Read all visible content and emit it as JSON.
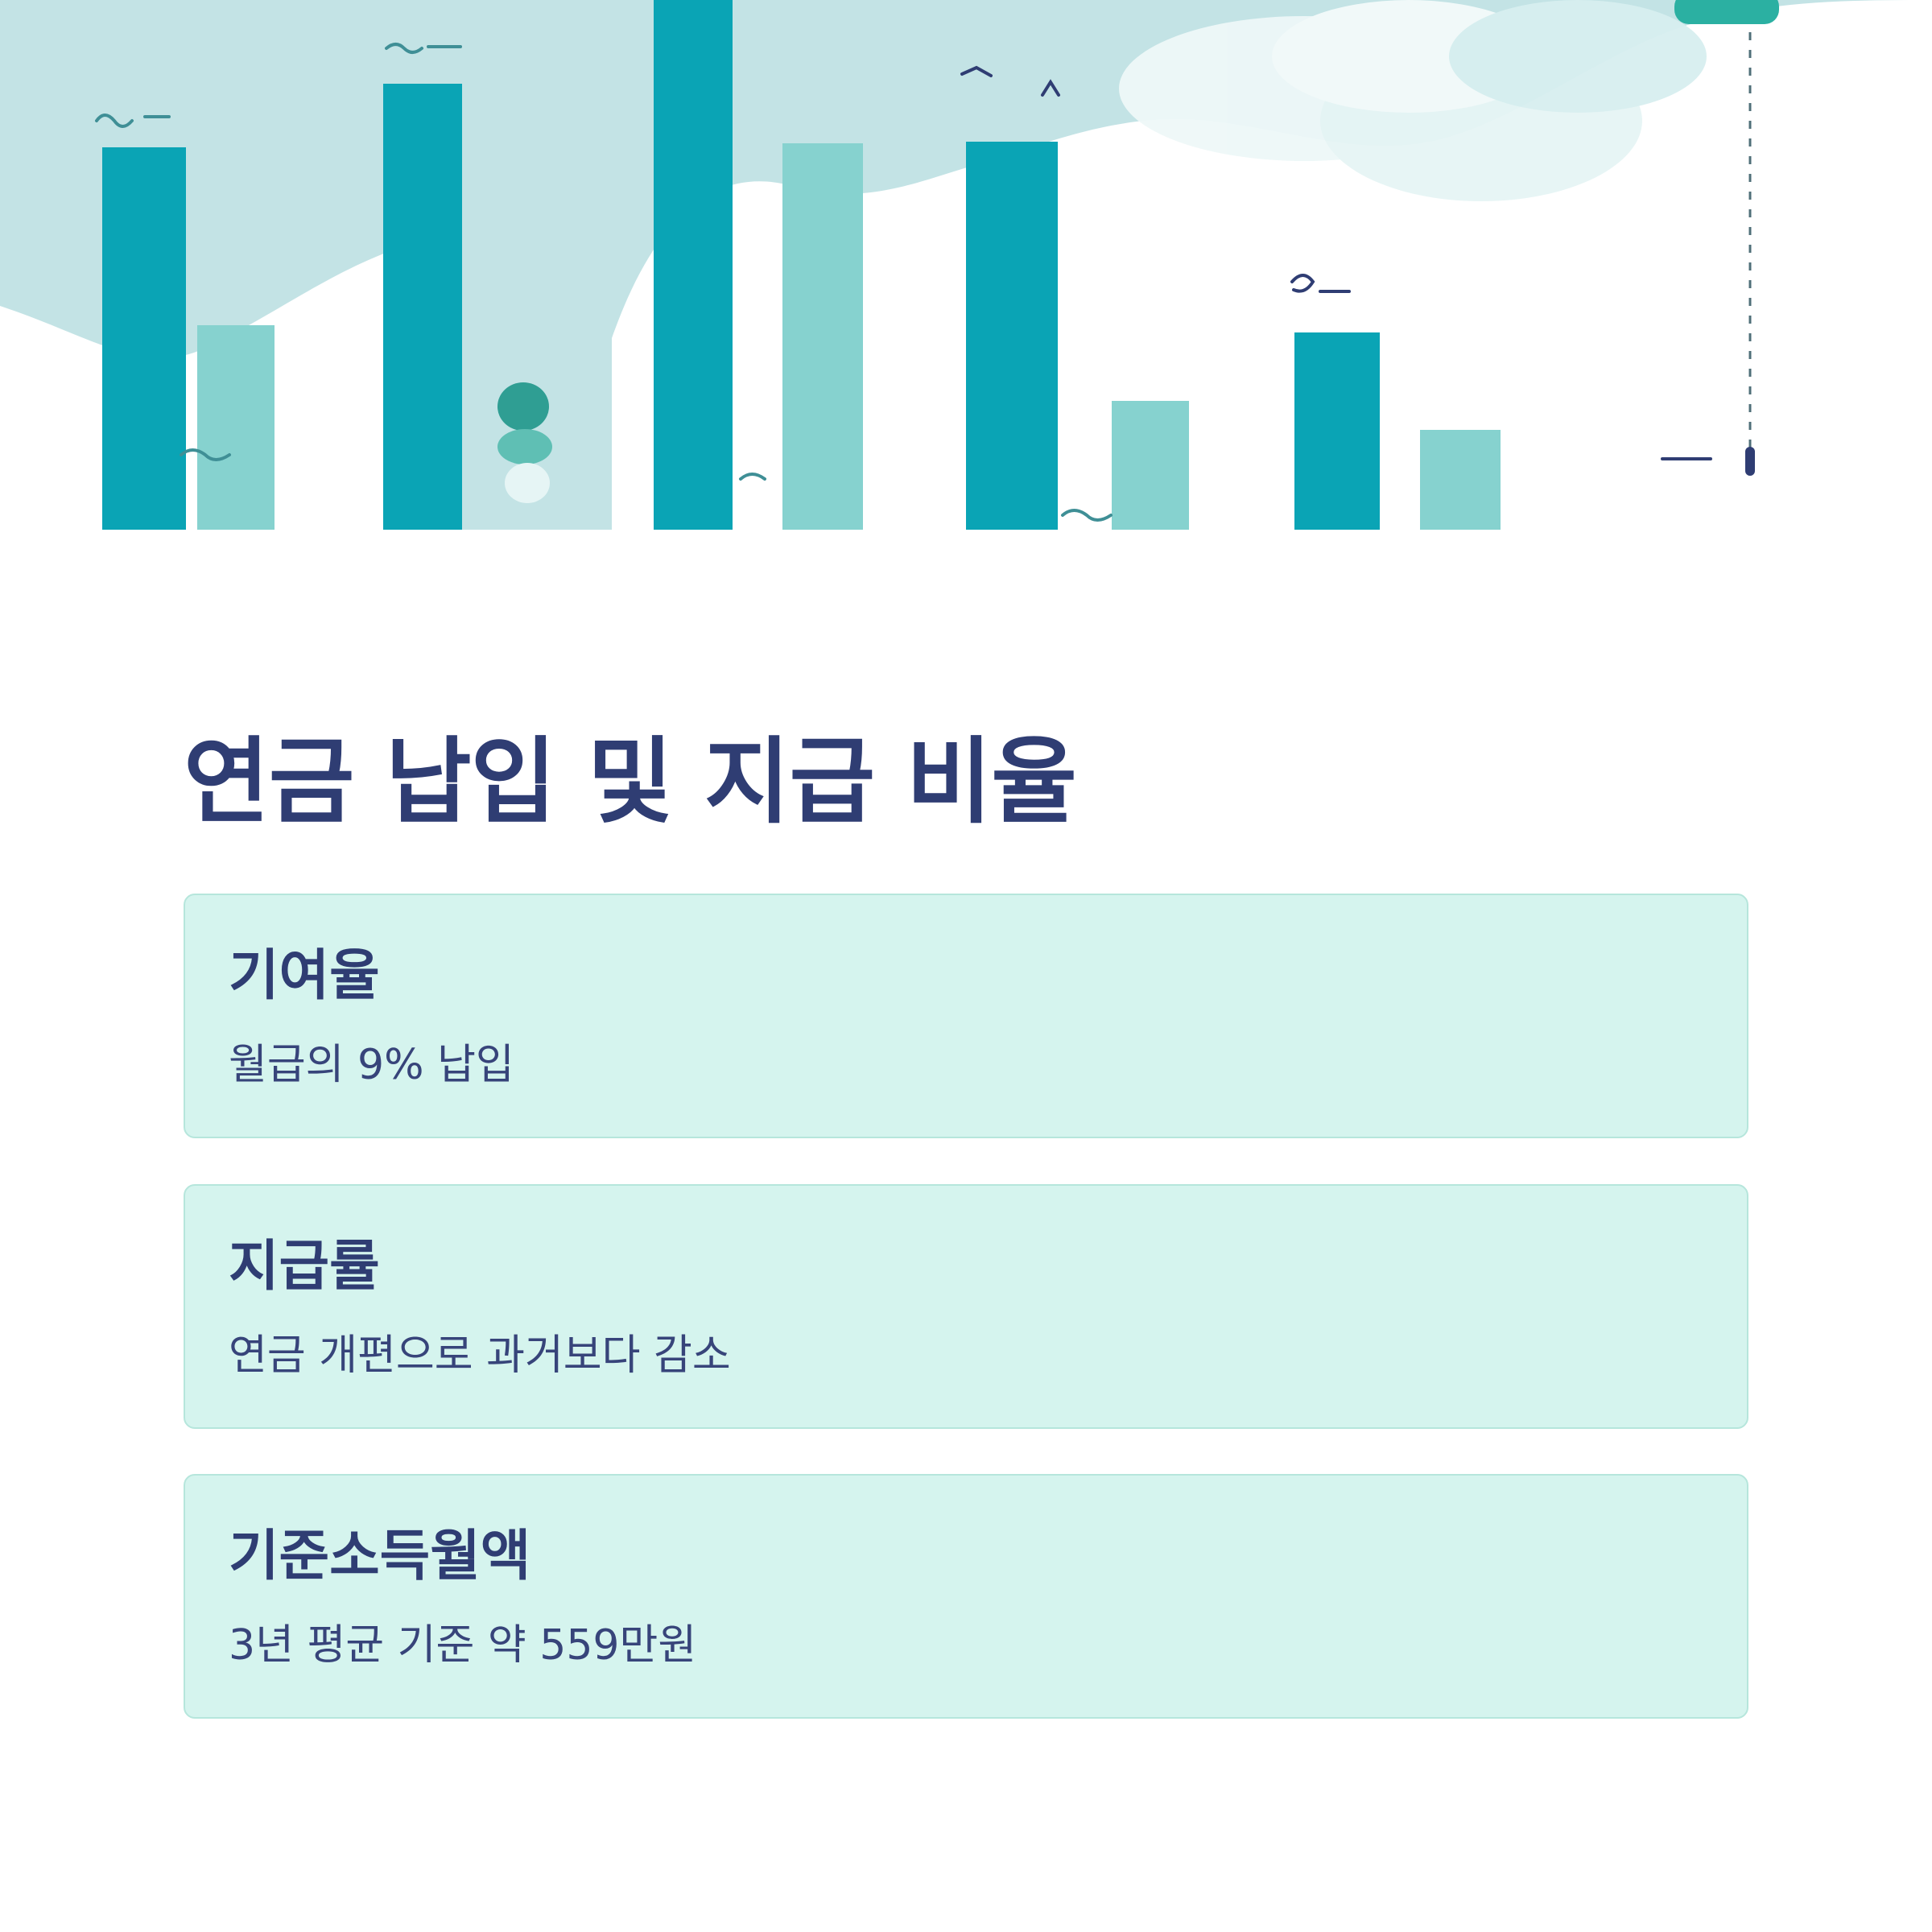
{
  "hero": {
    "image": "teal-bar-chart-illustration",
    "colors": {
      "sky": "#c3e3e5",
      "bar_dark": "#0aa4b5",
      "bar_light": "#86d2cf",
      "cloud": "#eef8f8"
    }
  },
  "page": {
    "title": "연금 납입 및 지급 비율"
  },
  "cards": [
    {
      "title": "기여율",
      "description": "월급의 9% 납입"
    },
    {
      "title": "지급률",
      "description": "연금 개편으로 과거보다 감소"
    },
    {
      "title": "기준소득월액",
      "description": "3년 평균 기준 약 559만원"
    }
  ],
  "theme": {
    "title_color": "#2f3d73",
    "card_bg": "#d5f4ee",
    "card_border": "#b6e6dc"
  }
}
